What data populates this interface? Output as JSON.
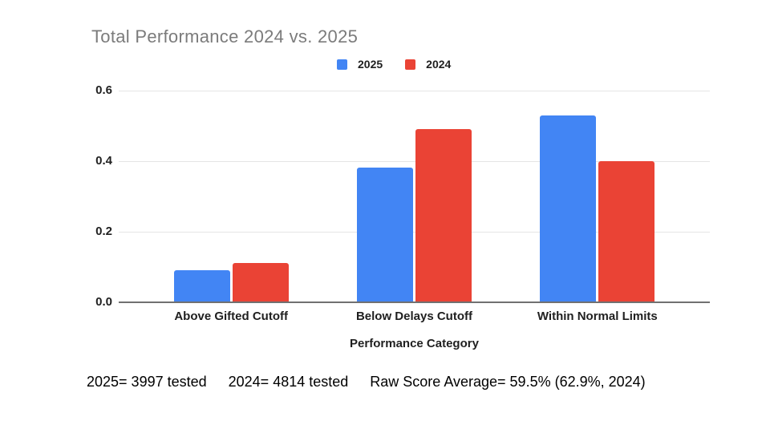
{
  "chart_data": {
    "type": "bar",
    "title": "Total Performance 2024 vs. 2025",
    "categories": [
      "Above Gifted Cutoff",
      "Below Delays Cutoff",
      "Within Normal Limits"
    ],
    "series": [
      {
        "name": "2025",
        "color": "#4285F4",
        "values": [
          0.09,
          0.38,
          0.53
        ]
      },
      {
        "name": "2024",
        "color": "#EA4335",
        "values": [
          0.11,
          0.49,
          0.4
        ]
      }
    ],
    "xlabel": "Performance Category",
    "ylabel": "",
    "ylim": [
      0,
      0.6
    ],
    "yticks": [
      0.0,
      0.2,
      0.4,
      0.6
    ],
    "ytick_labels_desc": [
      "0.6",
      "0.4",
      "0.2",
      "0.0"
    ],
    "grid": true,
    "legend_position": "top"
  },
  "footer": {
    "stats": [
      "2025= 3997 tested",
      "2024= 4814 tested",
      "Raw Score Average= 59.5% (62.9%, 2024)"
    ]
  },
  "colors": {
    "background": "#ffffff",
    "title_text": "#7b7b7b",
    "axis_text": "#1f1f1f",
    "gridline": "#e5e5e5",
    "axis_line": "#717171",
    "series_2025": "#4285F4",
    "series_2024": "#EA4335"
  }
}
